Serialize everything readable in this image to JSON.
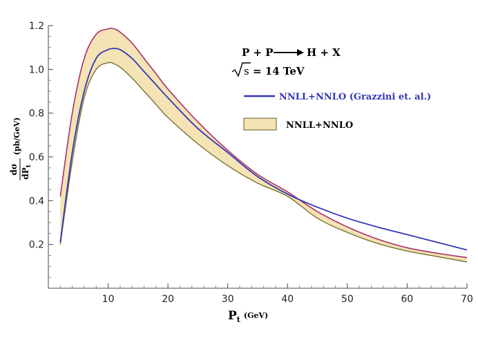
{
  "chart_data": {
    "type": "line",
    "title": "",
    "xlabel": "P_t (GeV)",
    "xlabel_main": "P",
    "xlabel_sub": "t",
    "xlabel_unit": "(GeV)",
    "ylabel_num": "dσ",
    "ylabel_den": "dP_t",
    "ylabel_den_main": "dP",
    "ylabel_den_sub": "t",
    "ylabel_unit": "(pb/GeV)",
    "xlim": [
      0,
      70
    ],
    "ylim": [
      0,
      1.2
    ],
    "xticks": [
      10,
      20,
      30,
      40,
      50,
      60,
      70
    ],
    "yticks": [
      0.2,
      0.4,
      0.6,
      0.8,
      1.0,
      1.2
    ],
    "ytick_labels": [
      "0.2",
      "0.4",
      "0.6",
      "0.8",
      "1.0",
      "1.2"
    ],
    "grid": false,
    "annotations": {
      "process_lhs": "P + P",
      "process_rhs": "H + X",
      "energy_var": "s",
      "energy_value": "= 14 TeV"
    },
    "series": [
      {
        "name": "NNLL+NNLO (Grazzini et. al.)",
        "kind": "line",
        "color": "#3535b5",
        "x": [
          2,
          4,
          6,
          8,
          10,
          11,
          12,
          14,
          16,
          18,
          20,
          25,
          30,
          35,
          40,
          45,
          50,
          55,
          60,
          65,
          70
        ],
        "y": [
          0.21,
          0.62,
          0.9,
          1.05,
          1.09,
          1.095,
          1.09,
          1.05,
          0.99,
          0.93,
          0.87,
          0.73,
          0.62,
          0.51,
          0.43,
          0.37,
          0.32,
          0.28,
          0.245,
          0.21,
          0.175
        ]
      },
      {
        "name": "NNLL+NNLO",
        "kind": "band",
        "fill": "#f3e3b5",
        "upper_color": "#a8306a",
        "lower_color": "#7a7030",
        "x": [
          2,
          4,
          6,
          8,
          10,
          11,
          12,
          14,
          16,
          18,
          20,
          25,
          30,
          35,
          40,
          45,
          50,
          55,
          60,
          65,
          70
        ],
        "upper": [
          0.42,
          0.8,
          1.05,
          1.16,
          1.185,
          1.185,
          1.17,
          1.12,
          1.05,
          0.98,
          0.91,
          0.76,
          0.63,
          0.52,
          0.44,
          0.35,
          0.28,
          0.225,
          0.185,
          0.16,
          0.14
        ],
        "lower": [
          0.2,
          0.58,
          0.87,
          1.0,
          1.03,
          1.025,
          1.01,
          0.96,
          0.9,
          0.84,
          0.78,
          0.66,
          0.56,
          0.48,
          0.42,
          0.32,
          0.255,
          0.205,
          0.17,
          0.145,
          0.12
        ]
      }
    ]
  }
}
